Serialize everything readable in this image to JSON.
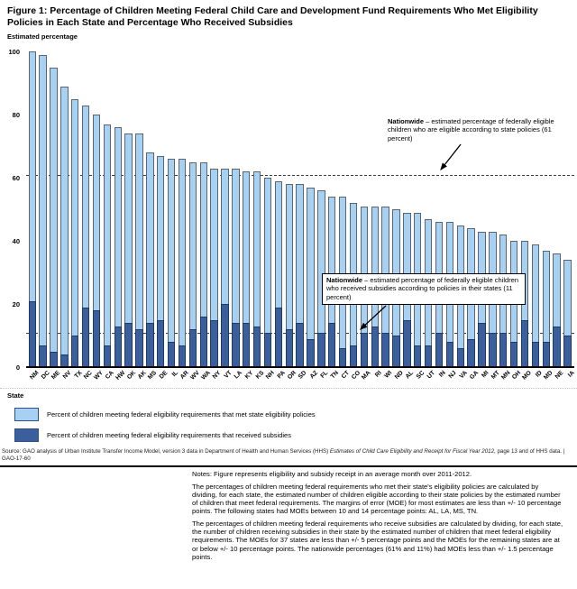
{
  "figure": {
    "title": "Figure 1: Percentage of Children Meeting Federal Child Care and Development Fund Requirements Who Met Eligibility Policies in Each State and Percentage Who Received Subsidies"
  },
  "chart_data": {
    "type": "bar",
    "title": "Figure 1: Percentage of Children Meeting Federal Child Care and Development Fund Requirements Who Met Eligibility Policies in Each State and Percentage Who Received Subsidies",
    "ylabel": "Estimated percentage",
    "xlabel": "State",
    "ylim": [
      0,
      100
    ],
    "yticks": [
      0,
      20,
      40,
      60,
      80,
      100
    ],
    "grid": false,
    "legend_position": "bottom",
    "categories": [
      "NM",
      "DC",
      "ME",
      "NV",
      "TX",
      "NC",
      "WY",
      "CA",
      "HW",
      "OK",
      "AK",
      "MS",
      "DE",
      "IL",
      "AR",
      "WV",
      "WA",
      "NY",
      "VT",
      "LA",
      "KY",
      "KS",
      "NH",
      "PA",
      "OR",
      "SD",
      "AZ",
      "FL",
      "TN",
      "CT",
      "CO",
      "MA",
      "RI",
      "WI",
      "ND",
      "AL",
      "SC",
      "UT",
      "IN",
      "NJ",
      "VA",
      "GA",
      "MI",
      "MT",
      "MN",
      "OH",
      "MO",
      "ID",
      "MD",
      "NE",
      "IA"
    ],
    "series": [
      {
        "name": "Percent of children meeting federal eligibility requirements that met state eligibility policies",
        "color": "#a7d1f3",
        "values": [
          100,
          99,
          95,
          89,
          85,
          83,
          80,
          77,
          76,
          74,
          74,
          68,
          67,
          66,
          66,
          65,
          65,
          63,
          63,
          63,
          62,
          62,
          60,
          59,
          58,
          58,
          57,
          56,
          54,
          54,
          52,
          51,
          51,
          51,
          50,
          49,
          49,
          47,
          46,
          46,
          45,
          44,
          43,
          43,
          42,
          40,
          40,
          39,
          37,
          36,
          34
        ]
      },
      {
        "name": "Percent of children meeting federal eligibility requirements that received subsidies",
        "color": "#3a5f9c",
        "values": [
          21,
          7,
          5,
          4,
          10,
          19,
          18,
          7,
          13,
          14,
          12,
          14,
          15,
          8,
          7,
          12,
          16,
          15,
          20,
          14,
          14,
          13,
          11,
          19,
          12,
          14,
          9,
          11,
          14,
          6,
          7,
          11,
          13,
          11,
          10,
          15,
          7,
          7,
          11,
          8,
          6,
          9,
          14,
          11,
          11,
          8,
          15,
          8,
          8,
          13,
          10
        ]
      }
    ],
    "reference_lines": [
      {
        "value": 61,
        "label": "Nationwide eligibility (61 percent)"
      },
      {
        "value": 11,
        "label": "Nationwide subsidy receipt (11 percent)"
      }
    ]
  },
  "annotations": {
    "eligibility": {
      "bold": "Nationwide",
      "rest": " – estimated percentage of federally eligible children who are eligible according to state policies (61 percent)"
    },
    "subsidy": {
      "bold": "Nationwide",
      "rest": " –  estimated percentage of federally eligible children who received subsidies according to policies in their states (11 percent)"
    }
  },
  "source": {
    "prefix": "Source: GAO analysis of Urban Institute Transfer Income Model, version 3 data in Department of Health and Human Services (HHS) ",
    "italic": "Estimates of Child Care Eligibility and Receipt for Fiscal Year 2012",
    "suffix": ", page 13 and of HHS data.  |  GAO-17-60"
  },
  "notes": {
    "p1": "Notes: Figure represents eligibility and subsidy receipt in an average month over 2011-2012.",
    "p2": "The percentages of children meeting federal requirements who met their state's eligibility policies are calculated by dividing, for each state, the estimated number of children eligible according to their state policies by the estimated number of children that meet federal requirements. The margins of error (MOE) for most estimates are less than +/- 10 percentage points. The following states had MOEs between 10 and 14 percentage points: AL, LA, MS, TN.",
    "p3": "The percentages of children meeting federal requirements who receive subsidies are calculated by dividing, for each state, the number of children receiving subsidies in their state by the estimated number of children that meet federal eligibility requirements. The MOEs for 37 states are less than +/- 5 percentage points and the MOEs for the remaining states are at or below +/- 10 percentage points. The nationwide percentages (61% and 11%) had MOEs less than +/- 1.5 percentage points."
  }
}
